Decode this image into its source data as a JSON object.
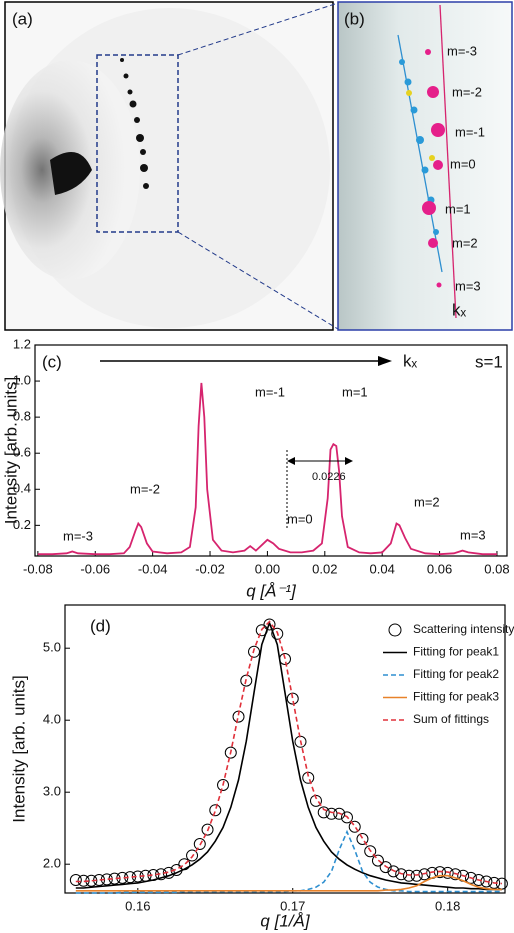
{
  "panels": {
    "a": {
      "label": "(a)"
    },
    "b": {
      "label": "(b)",
      "annotations": [
        "m=-3",
        "m=-2",
        "m=-1",
        "m=0",
        "m=1",
        "m=2",
        "m=3",
        "kₓ"
      ]
    }
  },
  "chart_data": [
    {
      "type": "line",
      "panel_label": "(c)",
      "x_label": "q [Å⁻¹]",
      "y_label": "Intensity [arb. units]",
      "annotations": [
        "m=-3",
        "m=-2",
        "m=-1",
        "m=0",
        "m=1",
        "m=2",
        "m=3",
        "0.0226",
        "kₓ",
        "s=1"
      ],
      "color": "#d6246e",
      "x": [
        -0.08,
        -0.075,
        -0.07,
        -0.068,
        -0.066,
        -0.06,
        -0.055,
        -0.05,
        -0.048,
        -0.046,
        -0.045,
        -0.044,
        -0.042,
        -0.04,
        -0.035,
        -0.03,
        -0.027,
        -0.025,
        -0.024,
        -0.023,
        -0.022,
        -0.021,
        -0.019,
        -0.016,
        -0.012,
        -0.008,
        -0.006,
        -0.004,
        -0.002,
        0,
        0.002,
        0.004,
        0.008,
        0.012,
        0.016,
        0.019,
        0.021,
        0.022,
        0.023,
        0.024,
        0.025,
        0.026,
        0.028,
        0.032,
        0.036,
        0.04,
        0.043,
        0.045,
        0.046,
        0.048,
        0.05,
        0.055,
        0.06,
        0.065,
        0.068,
        0.07,
        0.075,
        0.08
      ],
      "values": [
        0.04,
        0.04,
        0.045,
        0.055,
        0.045,
        0.04,
        0.04,
        0.045,
        0.08,
        0.17,
        0.21,
        0.19,
        0.1,
        0.055,
        0.045,
        0.05,
        0.08,
        0.3,
        0.75,
        0.99,
        0.8,
        0.4,
        0.12,
        0.06,
        0.05,
        0.06,
        0.085,
        0.06,
        0.09,
        0.12,
        0.1,
        0.07,
        0.05,
        0.05,
        0.06,
        0.1,
        0.35,
        0.62,
        0.65,
        0.64,
        0.5,
        0.25,
        0.08,
        0.05,
        0.045,
        0.05,
        0.1,
        0.21,
        0.2,
        0.13,
        0.07,
        0.045,
        0.04,
        0.045,
        0.06,
        0.05,
        0.04,
        0.04
      ],
      "xlim": [
        -0.081,
        0.0835
      ],
      "ylim": [
        0.03,
        1.2
      ],
      "xticks": [
        -0.08,
        -0.06,
        -0.04,
        -0.02,
        {
          "value": 0,
          "label": "0.00"
        },
        0.02,
        0.04,
        0.06,
        0.08
      ],
      "yticks": [
        0.2,
        0.4,
        0.6,
        0.8,
        {
          "value": 1,
          "label": "1.0"
        },
        1.2
      ]
    },
    {
      "type": "line",
      "panel_label": "(d)",
      "x_label": "q [1/Å]",
      "y_label": "Intensity [arb. units]",
      "legend": "upper right",
      "x": [
        0.156,
        0.1565,
        0.157,
        0.1575,
        0.158,
        0.1585,
        0.159,
        0.1595,
        0.16,
        0.1605,
        0.161,
        0.1615,
        0.162,
        0.1625,
        0.163,
        0.1635,
        0.164,
        0.1645,
        0.165,
        0.1655,
        0.166,
        0.1665,
        0.167,
        0.1675,
        0.168,
        0.1685,
        0.169,
        0.1695,
        0.17,
        0.1705,
        0.171,
        0.1715,
        0.172,
        0.1725,
        0.173,
        0.1735,
        0.174,
        0.1745,
        0.175,
        0.1755,
        0.176,
        0.1765,
        0.177,
        0.1775,
        0.178,
        0.1785,
        0.179,
        0.1795,
        0.18,
        0.1805,
        0.181,
        0.1815,
        0.182,
        0.1825,
        0.183,
        0.1835
      ],
      "series": [
        {
          "name": "Scattering intensity",
          "marker": "circle",
          "color": "#000000",
          "values": [
            1.78,
            1.77,
            1.77,
            1.78,
            1.79,
            1.8,
            1.81,
            1.82,
            1.83,
            1.84,
            1.85,
            1.86,
            1.88,
            1.92,
            2.0,
            2.12,
            2.28,
            2.48,
            2.75,
            3.1,
            3.55,
            4.05,
            4.55,
            4.95,
            5.25,
            5.33,
            5.2,
            4.85,
            4.3,
            3.7,
            3.2,
            2.88,
            2.72,
            2.7,
            2.7,
            2.65,
            2.52,
            2.35,
            2.18,
            2.05,
            1.96,
            1.9,
            1.86,
            1.84,
            1.84,
            1.86,
            1.88,
            1.89,
            1.88,
            1.86,
            1.84,
            1.81,
            1.78,
            1.76,
            1.74,
            1.73
          ]
        },
        {
          "name": "Fitting for peak1",
          "color": "#000000",
          "dash": false,
          "values": [
            1.67,
            1.67,
            1.68,
            1.69,
            1.7,
            1.71,
            1.72,
            1.73,
            1.74,
            1.76,
            1.78,
            1.81,
            1.84,
            1.88,
            1.93,
            1.99,
            2.07,
            2.17,
            2.32,
            2.51,
            2.79,
            3.17,
            3.71,
            4.38,
            5.05,
            5.35,
            5.05,
            4.38,
            3.71,
            3.17,
            2.79,
            2.51,
            2.32,
            2.17,
            2.07,
            1.99,
            1.93,
            1.88,
            1.84,
            1.81,
            1.78,
            1.76,
            1.74,
            1.73,
            1.72,
            1.71,
            1.7,
            1.69,
            1.68,
            1.67,
            1.67,
            1.66,
            1.66,
            1.65,
            1.65,
            1.65
          ]
        },
        {
          "name": "Fitting for peak2",
          "color": "#2e8fd0",
          "dash": true,
          "values": [
            1.6,
            1.6,
            1.6,
            1.6,
            1.6,
            1.6,
            1.61,
            1.61,
            1.61,
            1.61,
            1.61,
            1.61,
            1.61,
            1.61,
            1.62,
            1.62,
            1.62,
            1.62,
            1.62,
            1.62,
            1.62,
            1.62,
            1.62,
            1.62,
            1.62,
            1.62,
            1.62,
            1.62,
            1.63,
            1.63,
            1.65,
            1.68,
            1.75,
            1.9,
            2.2,
            2.45,
            2.2,
            1.9,
            1.75,
            1.68,
            1.65,
            1.63,
            1.63,
            1.62,
            1.62,
            1.62,
            1.62,
            1.62,
            1.62,
            1.62,
            1.62,
            1.62,
            1.62,
            1.62,
            1.62,
            1.62
          ]
        },
        {
          "name": "Fitting for peak3",
          "color": "#e8822a",
          "dash": false,
          "values": [
            1.63,
            1.63,
            1.63,
            1.63,
            1.63,
            1.63,
            1.63,
            1.63,
            1.63,
            1.63,
            1.63,
            1.63,
            1.63,
            1.63,
            1.63,
            1.63,
            1.63,
            1.63,
            1.63,
            1.63,
            1.63,
            1.63,
            1.63,
            1.63,
            1.63,
            1.63,
            1.63,
            1.63,
            1.63,
            1.63,
            1.63,
            1.63,
            1.63,
            1.63,
            1.63,
            1.63,
            1.63,
            1.63,
            1.63,
            1.63,
            1.64,
            1.64,
            1.65,
            1.67,
            1.7,
            1.76,
            1.81,
            1.84,
            1.84,
            1.81,
            1.77,
            1.72,
            1.68,
            1.66,
            1.65,
            1.65
          ]
        },
        {
          "name": "Sum of fittings",
          "color": "#e0303a",
          "dash": true,
          "values": [
            1.76,
            1.76,
            1.77,
            1.78,
            1.79,
            1.8,
            1.81,
            1.82,
            1.83,
            1.84,
            1.85,
            1.87,
            1.89,
            1.93,
            1.99,
            2.1,
            2.26,
            2.46,
            2.74,
            3.1,
            3.56,
            4.08,
            4.58,
            4.98,
            5.26,
            5.37,
            5.22,
            4.86,
            4.3,
            3.72,
            3.23,
            2.92,
            2.76,
            2.72,
            2.71,
            2.66,
            2.53,
            2.36,
            2.19,
            2.06,
            1.97,
            1.91,
            1.87,
            1.85,
            1.85,
            1.87,
            1.89,
            1.9,
            1.89,
            1.87,
            1.84,
            1.81,
            1.78,
            1.76,
            1.74,
            1.73
          ]
        }
      ],
      "xlim": [
        0.1553,
        0.1837
      ],
      "ylim": [
        1.6,
        5.6
      ],
      "xticks": [
        0.16,
        0.17,
        0.18
      ],
      "yticks": [
        {
          "value": 2,
          "label": "2.0"
        },
        {
          "value": 3,
          "label": "3.0"
        },
        {
          "value": 4,
          "label": "4.0"
        },
        {
          "value": 5,
          "label": "5.0"
        }
      ]
    }
  ]
}
